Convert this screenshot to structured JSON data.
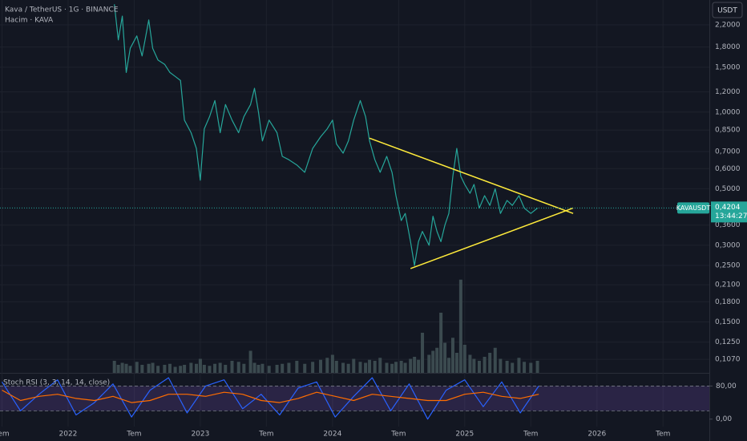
{
  "header": {
    "symbol": "Kava / TetherUS · 1G · BINANCE",
    "currency": "USDT"
  },
  "chart_data": [
    {
      "type": "line",
      "log_scale": true,
      "grid": true,
      "xlim": [
        2021.485,
        2026.85
      ],
      "ylim": [
        0.0947,
        2.754
      ],
      "xticks": [
        {
          "value": 2021.5,
          "label": "Tem"
        },
        2022,
        {
          "value": 2022.5,
          "label": "Tem"
        },
        2023,
        {
          "value": 2023.5,
          "label": "Tem"
        },
        2024,
        {
          "value": 2024.5,
          "label": "Tem"
        },
        2025,
        {
          "value": 2025.5,
          "label": "Tem"
        },
        2026,
        {
          "value": 2026.5,
          "label": "Tem"
        }
      ],
      "yticks": [
        {
          "value": 2.2,
          "label": "2,2000"
        },
        {
          "value": 1.8,
          "label": "1,8000"
        },
        {
          "value": 1.5,
          "label": "1,5000"
        },
        {
          "value": 1.2,
          "label": "1,2000"
        },
        {
          "value": 1.0,
          "label": "1,0000"
        },
        {
          "value": 0.85,
          "label": "0,8500"
        },
        {
          "value": 0.7,
          "label": "0,7000"
        },
        {
          "value": 0.6,
          "label": "0,6000"
        },
        {
          "value": 0.5,
          "label": "0,5000"
        },
        {
          "value": 0.36,
          "label": "0,3600"
        },
        {
          "value": 0.3,
          "label": "0,3000"
        },
        {
          "value": 0.25,
          "label": "0,2500"
        },
        {
          "value": 0.21,
          "label": "0,2100"
        },
        {
          "value": 0.18,
          "label": "0,1800"
        },
        {
          "value": 0.15,
          "label": "0,1500"
        },
        {
          "value": 0.125,
          "label": "0,1250"
        },
        {
          "value": 0.107,
          "label": "0,1070"
        }
      ],
      "x": [
        2022.35,
        2022.38,
        2022.41,
        2022.44,
        2022.47,
        2022.52,
        2022.56,
        2022.61,
        2022.64,
        2022.68,
        2022.73,
        2022.77,
        2022.81,
        2022.85,
        2022.88,
        2022.93,
        2022.97,
        2023.0,
        2023.03,
        2023.07,
        2023.11,
        2023.15,
        2023.19,
        2023.24,
        2023.29,
        2023.33,
        2023.38,
        2023.41,
        2023.44,
        2023.47,
        2023.52,
        2023.58,
        2023.62,
        2023.67,
        2023.73,
        2023.79,
        2023.85,
        2023.91,
        2023.96,
        2024.0,
        2024.03,
        2024.08,
        2024.12,
        2024.16,
        2024.21,
        2024.25,
        2024.28,
        2024.32,
        2024.36,
        2024.41,
        2024.45,
        2024.48,
        2024.52,
        2024.55,
        2024.59,
        2024.62,
        2024.65,
        2024.68,
        2024.73,
        2024.76,
        2024.79,
        2024.82,
        2024.85,
        2024.88,
        2024.91,
        2024.94,
        2024.97,
        2025.0,
        2025.04,
        2025.07,
        2025.11,
        2025.15,
        2025.19,
        2025.23,
        2025.27,
        2025.32,
        2025.36,
        2025.41,
        2025.45,
        2025.5,
        2025.55
      ],
      "series": [
        {
          "name": "KAVAUSDT",
          "color": "#26a69a",
          "values": [
            2.65,
            1.92,
            2.38,
            1.43,
            1.78,
            1.99,
            1.66,
            2.3,
            1.78,
            1.6,
            1.54,
            1.43,
            1.38,
            1.33,
            0.93,
            0.83,
            0.72,
            0.54,
            0.86,
            0.96,
            1.11,
            0.83,
            1.07,
            0.93,
            0.83,
            0.96,
            1.07,
            1.24,
            1.0,
            0.77,
            0.93,
            0.83,
            0.67,
            0.65,
            0.62,
            0.58,
            0.72,
            0.8,
            0.86,
            0.93,
            0.75,
            0.69,
            0.77,
            0.93,
            1.11,
            0.96,
            0.77,
            0.65,
            0.58,
            0.67,
            0.58,
            0.47,
            0.375,
            0.4,
            0.31,
            0.25,
            0.31,
            0.34,
            0.3,
            0.39,
            0.34,
            0.31,
            0.36,
            0.4,
            0.56,
            0.72,
            0.56,
            0.52,
            0.48,
            0.52,
            0.42,
            0.47,
            0.43,
            0.5,
            0.4,
            0.45,
            0.43,
            0.47,
            0.42,
            0.4,
            0.42
          ]
        }
      ],
      "volume": {
        "name": "Hacim · KAVA",
        "color": "#3b4a4f",
        "ylim": [
          0,
          100
        ],
        "values": [
          12,
          8,
          10,
          9,
          7,
          11,
          8,
          9,
          10,
          7,
          8,
          9,
          6,
          7,
          8,
          10,
          9,
          14,
          8,
          7,
          9,
          10,
          8,
          12,
          11,
          9,
          22,
          10,
          8,
          9,
          7,
          8,
          9,
          10,
          12,
          9,
          11,
          13,
          15,
          18,
          12,
          10,
          9,
          14,
          11,
          10,
          13,
          12,
          15,
          10,
          9,
          11,
          12,
          10,
          14,
          16,
          13,
          40,
          18,
          22,
          25,
          60,
          30,
          15,
          35,
          20,
          93,
          28,
          18,
          14,
          12,
          16,
          20,
          25,
          14,
          12,
          10,
          15,
          11,
          10,
          12
        ]
      },
      "trendlines": [
        {
          "color": "#ffeb3b",
          "x": [
            2024.28,
            2025.82
          ],
          "values": [
            0.79,
            0.4
          ]
        },
        {
          "color": "#ffeb3b",
          "x": [
            2024.59,
            2025.82
          ],
          "values": [
            0.243,
            0.42
          ]
        }
      ],
      "last_price": {
        "value": 0.4204,
        "label": "0,4204"
      },
      "countdown": "13:44:27"
    },
    {
      "type": "line",
      "title": "Stoch RSI (3, 3, 14, 14, close)",
      "xlim": [
        2021.485,
        2026.85
      ],
      "ylim": [
        -18,
        106
      ],
      "yticks": [
        {
          "value": 80,
          "label": "80,00"
        },
        {
          "value": 0,
          "label": "0,00"
        }
      ],
      "band": [
        20,
        80
      ],
      "band_color": "#7e57c2",
      "x": [
        2021.5,
        2021.64,
        2021.78,
        2021.92,
        2022.06,
        2022.2,
        2022.34,
        2022.48,
        2022.62,
        2022.76,
        2022.9,
        2023.04,
        2023.18,
        2023.32,
        2023.46,
        2023.6,
        2023.74,
        2023.88,
        2024.02,
        2024.16,
        2024.3,
        2024.44,
        2024.58,
        2024.72,
        2024.86,
        2025.0,
        2025.14,
        2025.28,
        2025.42,
        2025.56
      ],
      "series": [
        {
          "color": "#2962ff",
          "values": [
            90,
            20,
            60,
            95,
            10,
            40,
            85,
            5,
            70,
            100,
            15,
            80,
            95,
            25,
            60,
            10,
            75,
            90,
            5,
            55,
            100,
            20,
            85,
            0,
            70,
            95,
            30,
            90,
            15,
            80
          ]
        },
        {
          "color": "#ff6d00",
          "values": [
            70,
            45,
            55,
            60,
            50,
            45,
            55,
            40,
            45,
            60,
            60,
            55,
            65,
            60,
            45,
            40,
            50,
            65,
            55,
            45,
            60,
            55,
            50,
            45,
            45,
            60,
            65,
            55,
            50,
            60
          ]
        }
      ]
    }
  ]
}
